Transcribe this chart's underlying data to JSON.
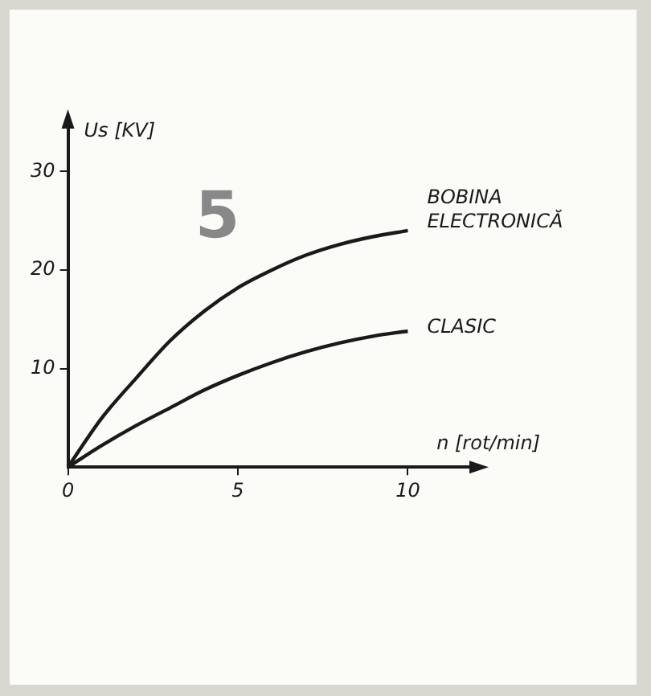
{
  "chart_data": {
    "type": "line",
    "xlabel": "n [rot/min]",
    "ylabel": "Us [KV]",
    "annotations": [
      "5"
    ],
    "x": [
      0,
      1,
      2,
      3,
      4,
      5,
      6,
      7,
      8,
      9,
      10
    ],
    "series": [
      {
        "name": "BOBINA ELECTRONICĂ",
        "color": "#1a1a1a",
        "values": [
          0,
          5,
          9,
          12.8,
          15.8,
          18.2,
          20,
          21.5,
          22.6,
          23.4,
          24
        ]
      },
      {
        "name": "CLASIC",
        "color": "#1a1a1a",
        "values": [
          0,
          2.2,
          4.2,
          6,
          7.8,
          9.3,
          10.6,
          11.7,
          12.6,
          13.3,
          13.8
        ]
      }
    ],
    "xlim": [
      0,
      12
    ],
    "ylim": [
      0,
      35
    ],
    "xticks": [
      0,
      5,
      10
    ],
    "yticks": [
      10,
      20,
      30
    ],
    "grid": false,
    "legend": false,
    "marker": "none",
    "line_style": "solid"
  }
}
